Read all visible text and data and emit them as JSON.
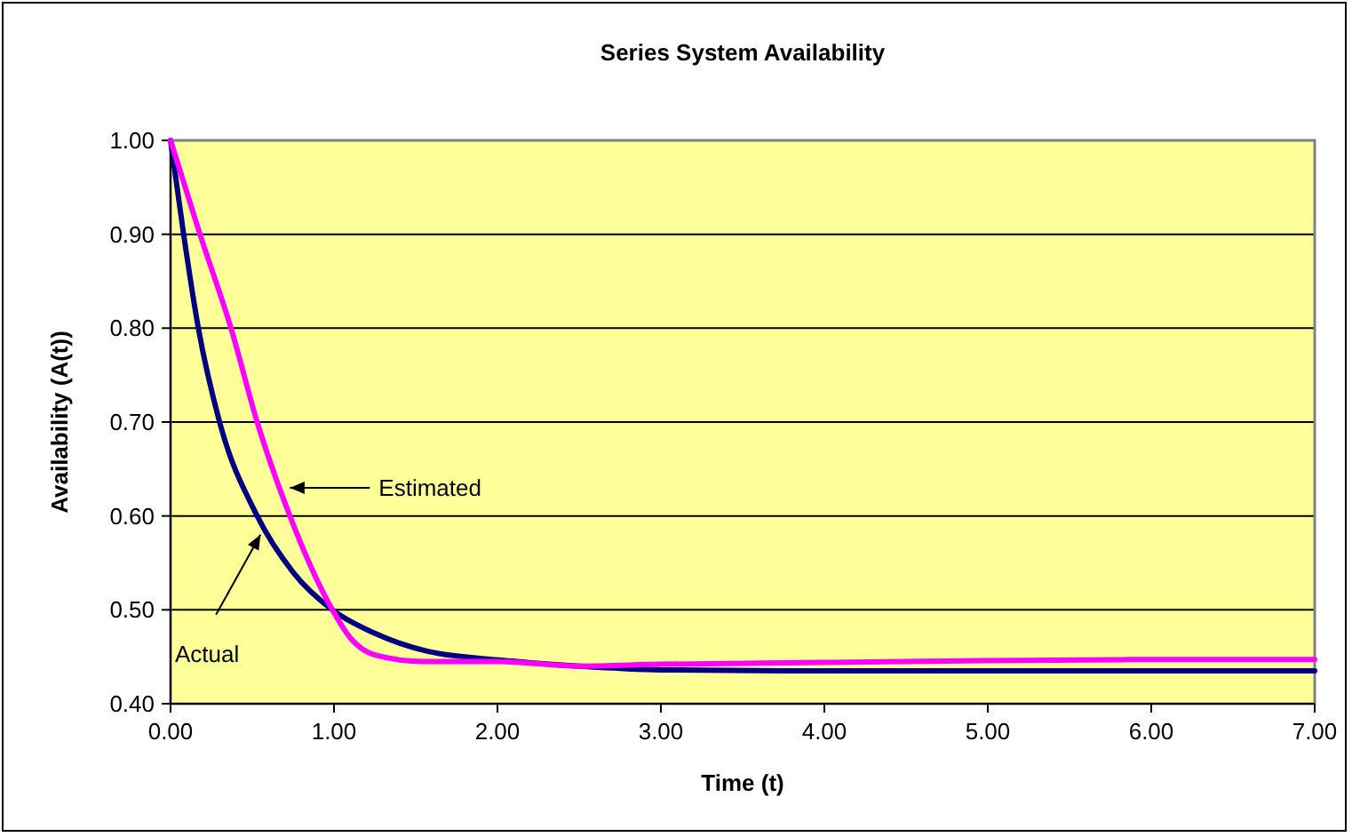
{
  "chart_data": {
    "type": "line",
    "title": "Series System Availability",
    "xlabel": "Time (t)",
    "ylabel": "Availability (A(t))",
    "xlim": [
      0,
      7
    ],
    "ylim": [
      0.4,
      1.0
    ],
    "xticks": [
      {
        "value": 0,
        "label": "0.00"
      },
      {
        "value": 1,
        "label": "1.00"
      },
      {
        "value": 2,
        "label": "2.00"
      },
      {
        "value": 3,
        "label": "3.00"
      },
      {
        "value": 4,
        "label": "4.00"
      },
      {
        "value": 5,
        "label": "5.00"
      },
      {
        "value": 6,
        "label": "6.00"
      },
      {
        "value": 7,
        "label": "7.00"
      }
    ],
    "yticks": [
      {
        "value": 0.4,
        "label": "0.40"
      },
      {
        "value": 0.5,
        "label": "0.50"
      },
      {
        "value": 0.6,
        "label": "0.60"
      },
      {
        "value": 0.7,
        "label": "0.70"
      },
      {
        "value": 0.8,
        "label": "0.80"
      },
      {
        "value": 0.9,
        "label": "0.90"
      },
      {
        "value": 1.0,
        "label": "1.00"
      }
    ],
    "grid": "y",
    "marker": "none",
    "line_style": "solid",
    "series": [
      {
        "color": "#000080",
        "x": [
          0,
          0.08,
          0.17,
          0.3,
          0.53,
          0.75,
          0.99,
          1.25,
          1.57,
          2.12,
          2.5,
          3,
          4,
          5,
          6,
          7
        ],
        "values": [
          1.0,
          0.9,
          0.8,
          0.7,
          0.6,
          0.54,
          0.5,
          0.475,
          0.456,
          0.445,
          0.44,
          0.436,
          0.435,
          0.435,
          0.435,
          0.435
        ]
      },
      {
        "color": "#ff00ff",
        "x": [
          0,
          0.18,
          0.37,
          0.53,
          0.73,
          0.99,
          1.1,
          1.25,
          1.55,
          2,
          2.5,
          3,
          4,
          5,
          6,
          7
        ],
        "values": [
          1.0,
          0.9,
          0.8,
          0.7,
          0.6,
          0.5,
          0.47,
          0.452,
          0.445,
          0.445,
          0.44,
          0.442,
          0.444,
          0.446,
          0.447,
          0.447
        ]
      }
    ],
    "annotations": [
      {
        "text": "Estimated",
        "x": 0.73,
        "y": 0.63
      },
      {
        "text": "Actual",
        "x": 0.55,
        "y": 0.58
      }
    ]
  }
}
